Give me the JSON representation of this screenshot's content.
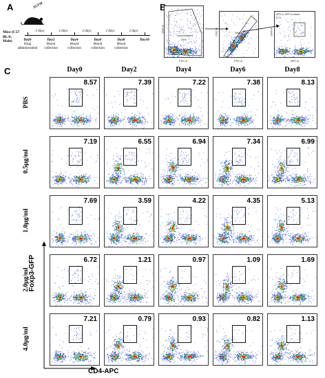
{
  "panels": {
    "a": "A",
    "b": "B",
    "c": "C"
  },
  "timeline": {
    "mice_label": "Mice (C57 BL/6, Male)",
    "cage_text": "NCFM",
    "interval": "2 days",
    "events": [
      {
        "day": "Day0",
        "desc": "Drug administration"
      },
      {
        "day": "Day2",
        "desc": "Blood collection"
      },
      {
        "day": "Day4",
        "desc": "Blood collection"
      },
      {
        "day": "Day6",
        "desc": "Blood collection"
      },
      {
        "day": "Day8",
        "desc": "Blood collection"
      },
      {
        "day": "Day10",
        "desc": ""
      }
    ]
  },
  "gating": {
    "plot1": {
      "gate_label": "Lymphocytes",
      "gate_value": "37.8",
      "x_axis": "FSC-A",
      "y_axis": "SSC-A"
    },
    "plot2": {
      "gate_label": "Single Cells",
      "gate_value": "97.9",
      "x_axis": "FSC-A",
      "y_axis": "FSC-H"
    },
    "plot3": {
      "gate_label": "APC-A, GFP-A subset",
      "gate_value": "8.74",
      "x_axis": "APC-A",
      "y_axis": "GFP-A"
    }
  },
  "grid": {
    "columns": [
      "Day0",
      "Day2",
      "Day4",
      "Day6",
      "Day8"
    ],
    "rows": [
      "PBS",
      "0.5μg/ml",
      "1.0μg/ml",
      "2.0μg/ml",
      "4.0μg/ml"
    ],
    "values": [
      [
        "8.57",
        "7.39",
        "7.22",
        "7.38",
        "8.13"
      ],
      [
        "7.19",
        "6.55",
        "6.94",
        "7.34",
        "6.99"
      ],
      [
        "7.69",
        "3.59",
        "4.22",
        "4.35",
        "5.13"
      ],
      [
        "6.72",
        "1.21",
        "0.97",
        "1.09",
        "1.69"
      ],
      [
        "7.21",
        "0.79",
        "0.93",
        "0.82",
        "1.13"
      ]
    ],
    "x_axis_title": "CD4-APC",
    "y_axis_title": "Foxp3-GFP"
  },
  "colors": {
    "hot": "#e8261b",
    "warm": "#f6d22a",
    "mid": "#2bb34a",
    "cool": "#1f4fd6",
    "sparse": "#3c46c8"
  }
}
